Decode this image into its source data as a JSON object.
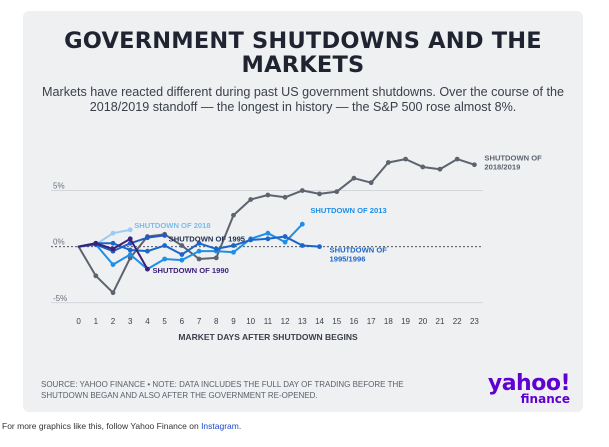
{
  "title_line1": "GOVERNMENT SHUTDOWNS AND THE",
  "title_line2": "MARKETS",
  "subtitle_line1": "Markets have reacted different during past US government shutdowns. Over the course of the",
  "subtitle_line2": "2018/2019 standoff — the longest in history — the S&P 500 rose almost 8%.",
  "source_text": "SOURCE: YAHOO FINANCE • NOTE: DATA INCLUDES THE FULL DAY OF TRADING BEFORE THE SHUTDOWN BEGAN AND ALSO AFTER THE GOVERNMENT RE-OPENED.",
  "logo_main": "yahoo!",
  "logo_sub": "finance",
  "footer_prefix": "For more graphics like this, follow Yahoo Finance on ",
  "footer_link": "Instagram",
  "footer_suffix": ".",
  "chart_data": {
    "type": "line",
    "xlabel": "MARKET DAYS AFTER SHUTDOWN BEGINS",
    "ylabel": "",
    "x_ticks": [
      0,
      1,
      2,
      3,
      4,
      5,
      6,
      7,
      8,
      9,
      10,
      11,
      12,
      13,
      14,
      15,
      16,
      17,
      18,
      19,
      20,
      21,
      22,
      23
    ],
    "y_ticks": [
      {
        "value": 5,
        "label": "5%"
      },
      {
        "value": 0,
        "label": "0%"
      },
      {
        "value": -5,
        "label": "-5%"
      }
    ],
    "xlim": [
      -0.5,
      23.5
    ],
    "ylim": [
      -6,
      8.7
    ],
    "grid": true,
    "series": [
      {
        "name": "SHUTDOWN OF 2018/2019",
        "label_lines": [
          "SHUTDOWN OF",
          "2018/2019"
        ],
        "color": "#5d6470",
        "label_color": "#5d6470",
        "x": [
          0,
          1,
          2,
          3,
          4,
          5,
          6,
          7,
          8,
          9,
          10,
          11,
          12,
          13,
          14,
          15,
          16,
          17,
          18,
          19,
          20,
          21,
          22,
          23
        ],
        "values": [
          0,
          -2.6,
          -4.1,
          -1.0,
          0.9,
          1.1,
          0.1,
          -1.1,
          -1.0,
          2.8,
          4.2,
          4.6,
          4.4,
          5.0,
          4.7,
          4.9,
          6.1,
          5.7,
          7.5,
          7.8,
          7.1,
          6.9,
          7.8,
          7.3
        ]
      },
      {
        "name": "SHUTDOWN OF 2018",
        "label_lines": [
          "SHUTDOWN OF 2018"
        ],
        "color": "#9ccaf0",
        "label_color": "#7cbcec",
        "x": [
          0,
          1,
          2,
          3
        ],
        "values": [
          0,
          0.2,
          1.2,
          1.5
        ]
      },
      {
        "name": "SHUTDOWN OF 2013",
        "label_lines": [
          "SHUTDOWN OF 2013"
        ],
        "color": "#1f8ee8",
        "label_color": "#1f8ee8",
        "x": [
          0,
          1,
          2,
          3,
          4,
          5,
          6,
          7,
          8,
          9,
          10,
          11,
          12,
          13
        ],
        "values": [
          0,
          0.2,
          -1.6,
          -0.7,
          -2.0,
          -1.1,
          -1.2,
          -0.4,
          -0.4,
          -0.5,
          0.7,
          1.2,
          0.4,
          2.0
        ]
      },
      {
        "name": "SHUTDOWN OF 1995",
        "label_lines": [
          "SHUTDOWN OF 1995"
        ],
        "color": "#2458c2",
        "label_color": "#22304f",
        "x": [
          0,
          1,
          2,
          3,
          4,
          5
        ],
        "values": [
          0,
          0.2,
          -0.4,
          0.3,
          0.8,
          1.0
        ]
      },
      {
        "name": "SHUTDOWN OF 1995/1996",
        "label_lines": [
          "SHUTDOWN OF",
          "1995/1996"
        ],
        "color": "#1a66c9",
        "label_color": "#1a66c9",
        "x": [
          0,
          1,
          2,
          3,
          4,
          5,
          6,
          7,
          8,
          9,
          10,
          11,
          12,
          13,
          14
        ],
        "values": [
          0,
          0.3,
          0.3,
          -0.3,
          -0.4,
          0.1,
          -0.7,
          0.3,
          -0.2,
          0.1,
          0.6,
          0.7,
          0.9,
          0.1,
          0.0
        ]
      },
      {
        "name": "SHUTDOWN OF 1990",
        "label_lines": [
          "SHUTDOWN OF 1990"
        ],
        "color": "#3b1f78",
        "label_color": "#3b1f78",
        "x": [
          0,
          1,
          2,
          3,
          4
        ],
        "values": [
          0,
          0.3,
          -0.2,
          0.7,
          -2.0
        ]
      }
    ]
  }
}
